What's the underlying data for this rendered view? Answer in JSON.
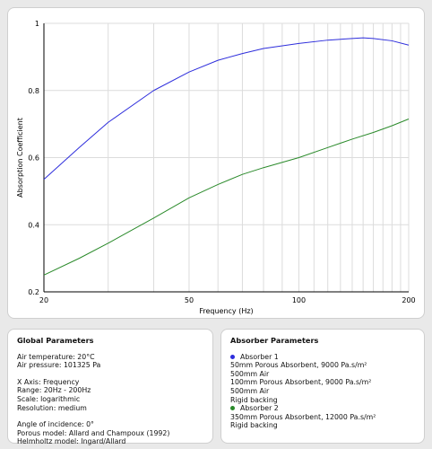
{
  "chart_data": {
    "type": "line",
    "xlabel": "Frequency (Hz)",
    "ylabel": "Absorption Coefficient",
    "xscale": "log",
    "xlim": [
      20,
      200
    ],
    "ylim": [
      0.2,
      1
    ],
    "x_ticks": [
      "20",
      "50",
      "100",
      "200"
    ],
    "y_ticks": [
      "0.2",
      "0.4",
      "0.6",
      "0.8",
      "1"
    ],
    "grid": true,
    "series": [
      {
        "name": "Absorber 1",
        "color": "#2e2edc",
        "x": [
          20,
          25,
          30,
          40,
          50,
          60,
          70,
          80,
          100,
          120,
          140,
          150,
          160,
          180,
          200
        ],
        "y": [
          0.535,
          0.63,
          0.705,
          0.8,
          0.855,
          0.89,
          0.91,
          0.925,
          0.94,
          0.95,
          0.955,
          0.957,
          0.955,
          0.948,
          0.935
        ]
      },
      {
        "name": "Absorber 2",
        "color": "#2a8a2a",
        "x": [
          20,
          25,
          30,
          40,
          50,
          60,
          70,
          80,
          100,
          120,
          140,
          160,
          180,
          200
        ],
        "y": [
          0.25,
          0.3,
          0.345,
          0.42,
          0.48,
          0.52,
          0.55,
          0.57,
          0.6,
          0.63,
          0.655,
          0.675,
          0.695,
          0.715
        ]
      }
    ]
  },
  "global": {
    "title": "Global Parameters",
    "air_temperature": "Air temperature: 20°C",
    "air_pressure": "Air pressure: 101325 Pa",
    "x_axis": "X Axis: Frequency",
    "range": "Range: 20Hz - 200Hz",
    "scale": "Scale: logarithmic",
    "resolution": "Resolution: medium",
    "angle": "Angle of incidence: 0°",
    "porous_model": "Porous model: Allard and Champoux (1992)",
    "helmholtz_model": "Helmholtz model: Ingard/Allard"
  },
  "absorbers": {
    "title": "Absorber Parameters",
    "a1": {
      "name": "Absorber 1",
      "color": "#2e2edc",
      "l1": "50mm Porous Absorbent, 9000 Pa.s/m²",
      "l2": "500mm Air",
      "l3": "100mm Porous Absorbent, 9000 Pa.s/m²",
      "l4": "500mm Air",
      "l5": "Rigid backing"
    },
    "a2": {
      "name": "Absorber 2",
      "color": "#2a8a2a",
      "l1": "350mm Porous Absorbent, 12000 Pa.s/m²",
      "l2": "Rigid backing"
    }
  }
}
